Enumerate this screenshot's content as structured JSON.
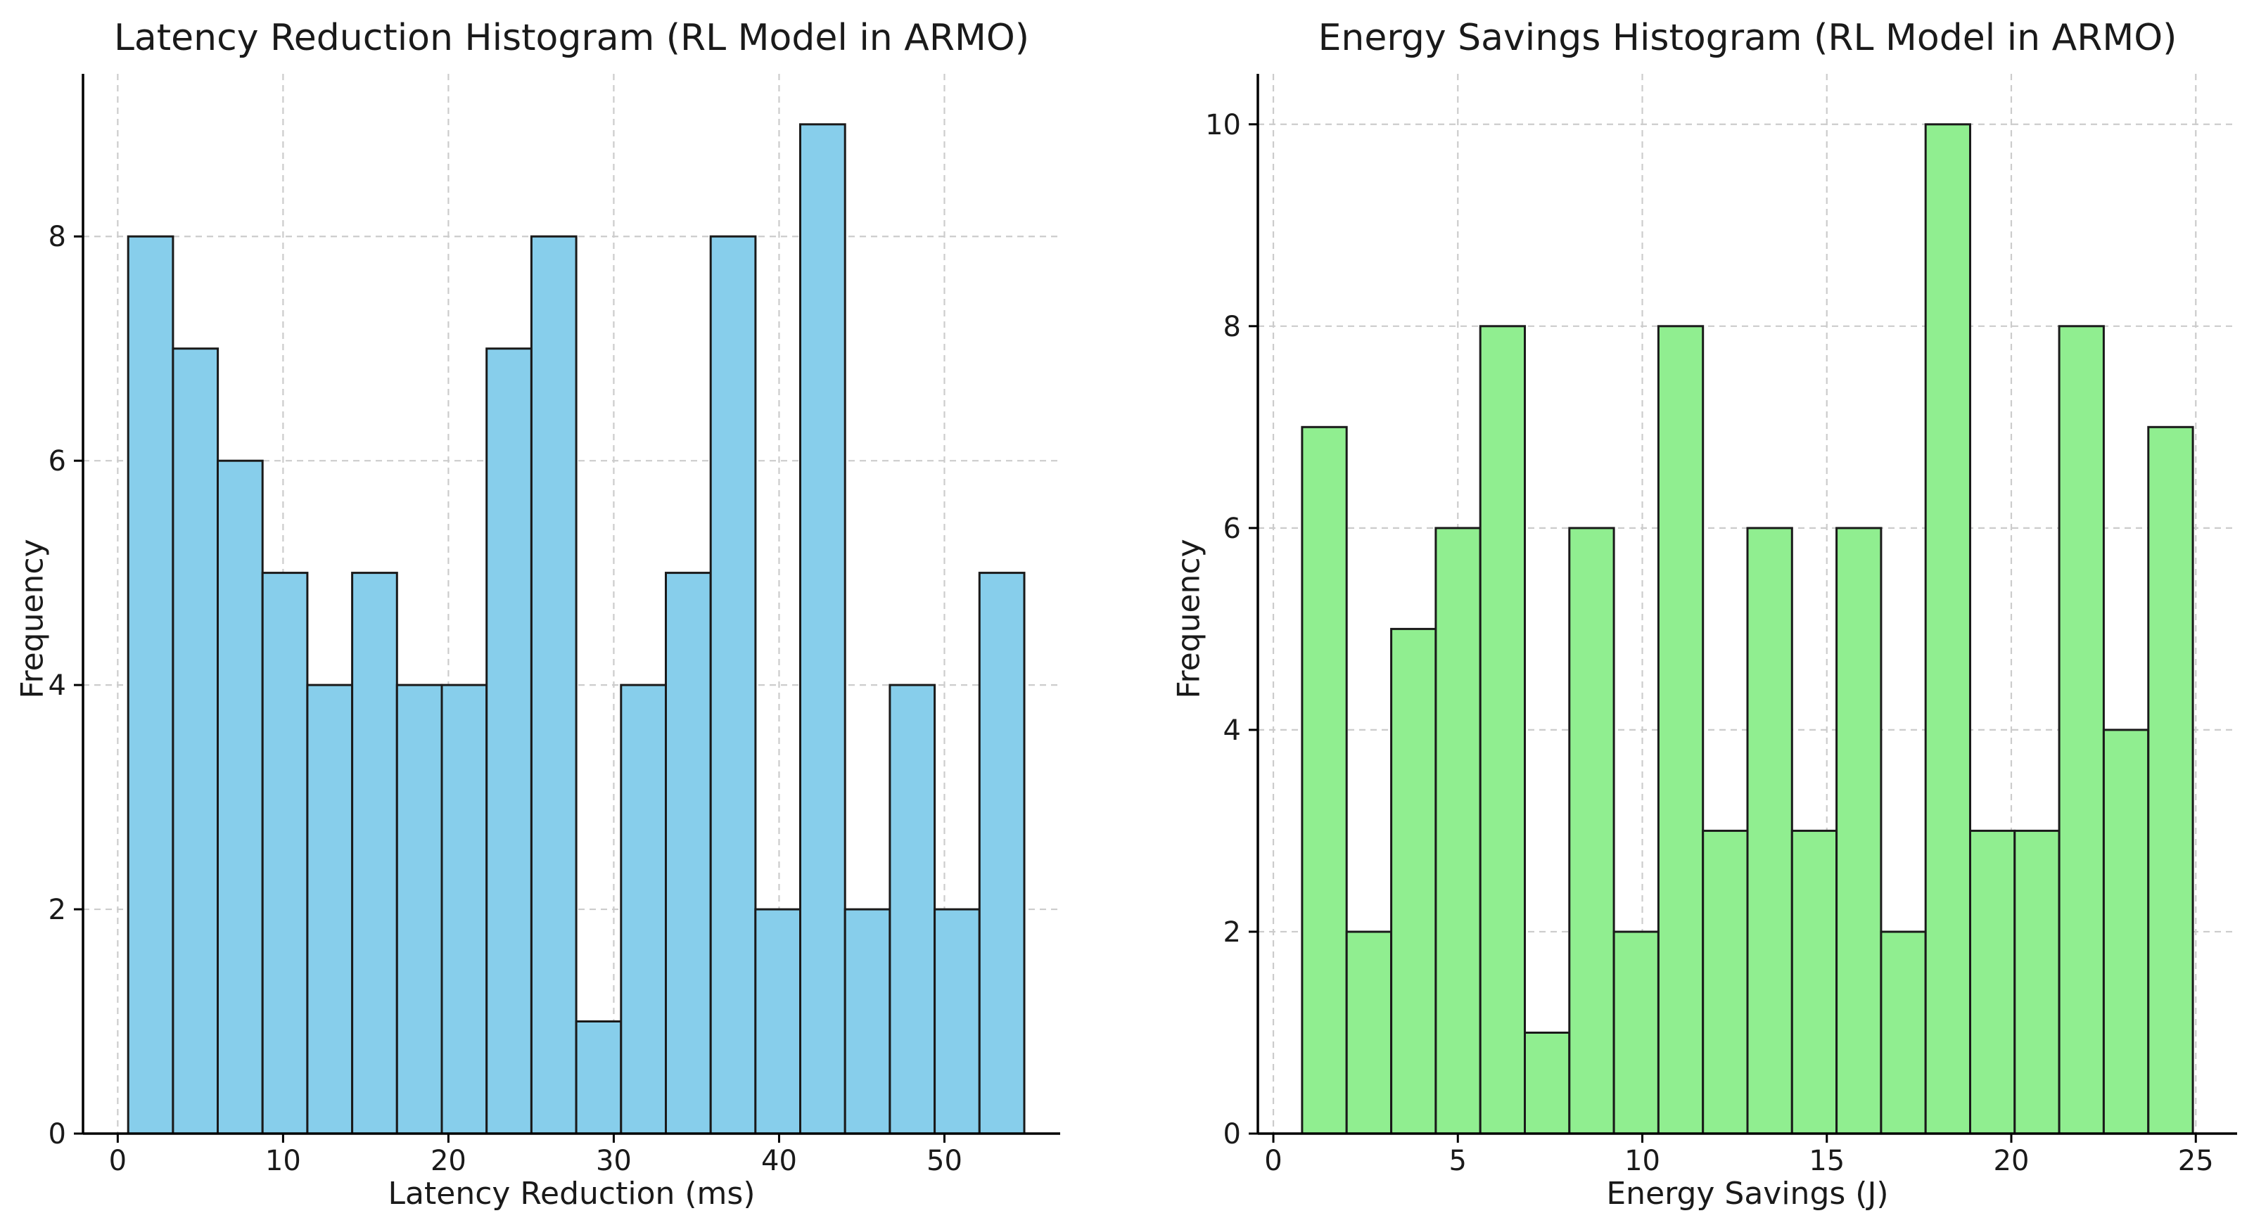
{
  "figure": {
    "background_color": "#ffffff",
    "grid_color": "#cccccc",
    "axis_color": "#000000",
    "text_color": "#1a1a1a"
  },
  "chart_data": [
    {
      "type": "bar",
      "subtype": "histogram",
      "title": "Latency Reduction Histogram (RL Model in ARMO)",
      "xlabel": "Latency Reduction (ms)",
      "ylabel": "Frequency",
      "bin_start": 0.63,
      "bin_width": 2.71,
      "values": [
        8,
        7,
        6,
        5,
        4,
        5,
        4,
        4,
        7,
        8,
        1,
        4,
        5,
        8,
        2,
        9,
        2,
        4,
        2,
        5
      ],
      "xticks": [
        0,
        10,
        20,
        30,
        40,
        50
      ],
      "yticks": [
        0,
        2,
        4,
        6,
        8
      ],
      "xlim": [
        -2.1,
        57.0
      ],
      "ylim": [
        0,
        9.45
      ],
      "bar_color": "#87CEEB",
      "edge_color": "#1a1a1a",
      "grid": "dashed, on both axes, behind bars",
      "legend": "none"
    },
    {
      "type": "bar",
      "subtype": "histogram",
      "title": "Energy Savings Histogram (RL Model in ARMO)",
      "xlabel": "Energy Savings (J)",
      "ylabel": "Frequency",
      "bin_start": 0.78,
      "bin_width": 1.207,
      "values": [
        7,
        2,
        5,
        6,
        8,
        1,
        6,
        2,
        8,
        3,
        6,
        3,
        6,
        2,
        10,
        3,
        3,
        8,
        4,
        7
      ],
      "xticks": [
        0,
        5,
        10,
        15,
        20,
        25
      ],
      "yticks": [
        0,
        2,
        4,
        6,
        8,
        10
      ],
      "xlim": [
        -0.42,
        26.12
      ],
      "ylim": [
        0,
        10.5
      ],
      "bar_color": "#90EE90",
      "edge_color": "#1a1a1a",
      "grid": "dashed, on both axes, behind bars",
      "legend": "none"
    }
  ]
}
